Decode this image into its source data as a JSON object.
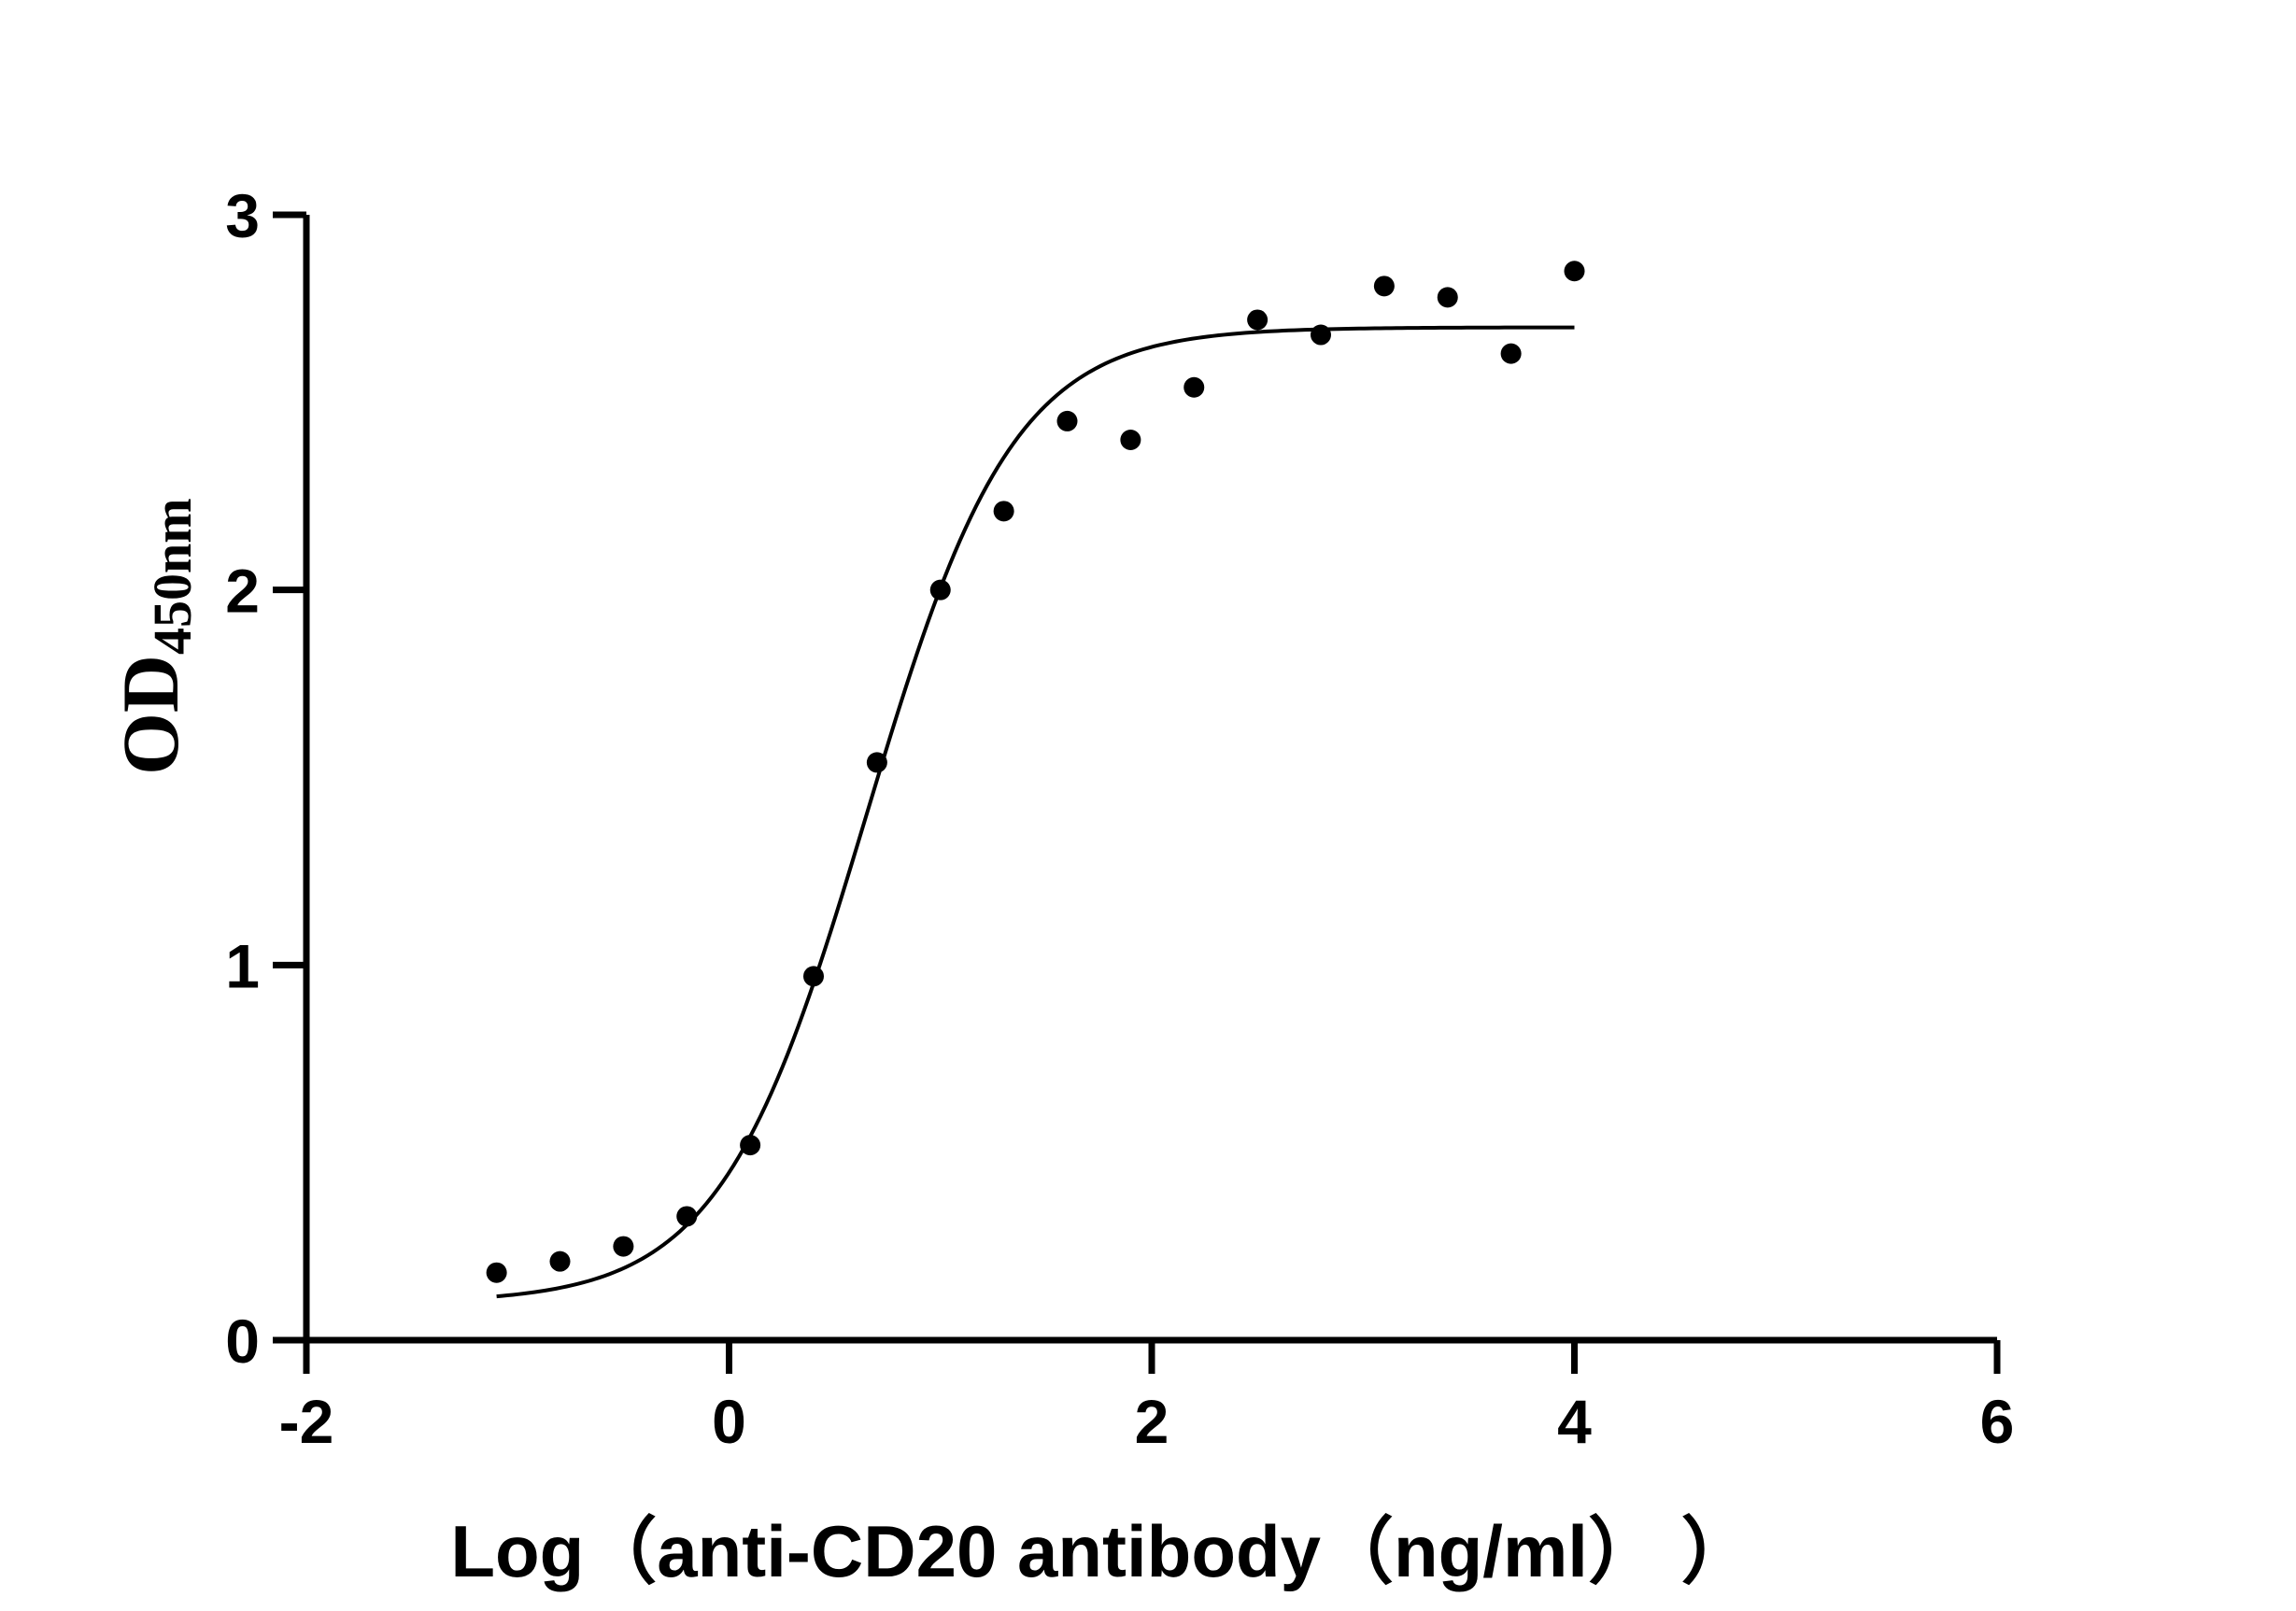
{
  "chart_data": {
    "type": "scatter",
    "title": "",
    "xlabel": "Log（anti-CD20 antibody（ng/ml）  ）",
    "ylabel_main": "OD",
    "ylabel_sub": "450nm",
    "xlim": [
      -2,
      6
    ],
    "ylim": [
      0,
      3
    ],
    "x_ticks": [
      -2,
      0,
      2,
      4,
      6
    ],
    "y_ticks": [
      0,
      1,
      2,
      3
    ],
    "x_tick_labels": [
      "-2",
      "0",
      "2",
      "4",
      "6"
    ],
    "y_tick_labels": [
      "0",
      "1",
      "2",
      "3"
    ],
    "grid": false,
    "legend": "none",
    "series": [
      {
        "kind": "points",
        "x": [
          -1.1,
          -0.8,
          -0.5,
          -0.2,
          0.1,
          0.4,
          0.7,
          1.0,
          1.3,
          1.6,
          1.9,
          2.2,
          2.5,
          2.8,
          3.1,
          3.4,
          3.7,
          4.0
        ],
        "y": [
          0.18,
          0.21,
          0.25,
          0.33,
          0.52,
          0.97,
          1.54,
          2.0,
          2.21,
          2.45,
          2.4,
          2.54,
          2.72,
          2.68,
          2.81,
          2.78,
          2.63,
          2.85
        ]
      },
      {
        "kind": "fit",
        "model": "4PL",
        "bottom": 0.1,
        "top": 2.7,
        "logEC50": 0.65,
        "hill": 1.25,
        "x_range": [
          -1.1,
          4.0
        ]
      }
    ],
    "colors": {
      "axis": "#000000",
      "points": "#000000",
      "curve": "#000000"
    }
  }
}
